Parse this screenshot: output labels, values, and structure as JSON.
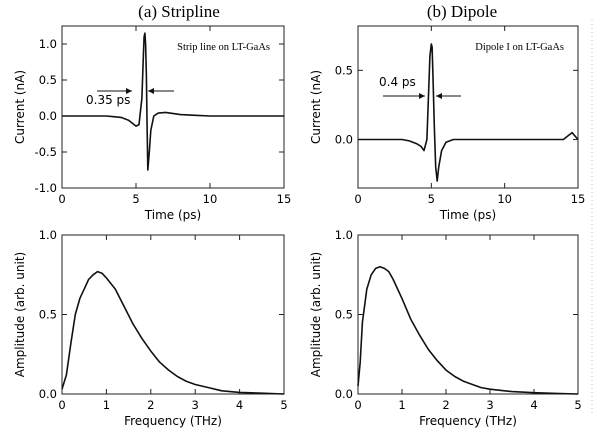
{
  "column_titles": [
    "(a) Stripline",
    "(b) Dipole"
  ],
  "chart_data": [
    {
      "type": "line",
      "panel": "stripline-time",
      "xlabel": "Time (ps)",
      "ylabel": "Current (nA)",
      "xlim": [
        0,
        15
      ],
      "ylim": [
        -1.0,
        1.25
      ],
      "xticks": [
        0,
        5,
        10,
        15
      ],
      "yticks": [
        -1.0,
        -0.5,
        0.0,
        0.5,
        1.0
      ],
      "ytick_labels": [
        "-1.0",
        "-0.5",
        "0.0",
        "0.5",
        "1.0"
      ],
      "legend_text": "Strip line on LT-GaAs",
      "annotation": {
        "text": "0.35 ps",
        "x": 5.6,
        "y": 0.55
      },
      "series": [
        {
          "x": [
            0,
            1,
            2,
            3,
            3.5,
            4,
            4.5,
            5.0,
            5.2,
            5.4,
            5.5,
            5.55,
            5.6,
            5.65,
            5.7,
            5.75,
            5.8,
            5.9,
            6.0,
            6.2,
            6.5,
            7,
            8,
            9,
            10,
            12,
            14,
            15
          ],
          "y": [
            0,
            0,
            0,
            0,
            -0.01,
            -0.02,
            -0.06,
            -0.14,
            -0.12,
            0.25,
            0.85,
            1.1,
            1.15,
            1.0,
            0.55,
            -0.15,
            -0.75,
            -0.5,
            -0.2,
            0.0,
            0.04,
            0.05,
            0.02,
            0.01,
            0.0,
            0.0,
            0.0,
            0.0
          ]
        }
      ]
    },
    {
      "type": "line",
      "panel": "dipole-time",
      "xlabel": "Time (ps)",
      "ylabel": "Current (nA)",
      "xlim": [
        0,
        15
      ],
      "ylim": [
        -0.35,
        0.82
      ],
      "xticks": [
        0,
        5,
        10,
        15
      ],
      "yticks": [
        0.0,
        0.5
      ],
      "ytick_labels": [
        "0.0",
        "0.5"
      ],
      "legend_text": "Dipole I on LT-GaAs",
      "annotation": {
        "text": "0.4 ps",
        "x": 5.0,
        "y": 0.38
      },
      "series": [
        {
          "x": [
            0,
            1,
            2,
            3,
            3.5,
            4,
            4.3,
            4.5,
            4.7,
            4.8,
            4.9,
            5.0,
            5.05,
            5.1,
            5.2,
            5.3,
            5.4,
            5.5,
            5.7,
            6.0,
            6.5,
            7,
            8,
            10,
            12,
            14,
            14.6,
            15
          ],
          "y": [
            0,
            0,
            0,
            0,
            -0.01,
            -0.03,
            -0.05,
            -0.08,
            0.0,
            0.3,
            0.6,
            0.69,
            0.67,
            0.5,
            0.1,
            -0.2,
            -0.3,
            -0.2,
            -0.08,
            -0.02,
            0.0,
            0.0,
            0.0,
            0.0,
            0.0,
            0.0,
            0.05,
            0.0
          ]
        }
      ]
    },
    {
      "type": "line",
      "panel": "stripline-spectrum",
      "xlabel": "Frequency (THz)",
      "ylabel": "Amplitude (arb. unit)",
      "xlim": [
        0,
        5
      ],
      "ylim": [
        0,
        1.0
      ],
      "xticks": [
        0,
        1,
        2,
        3,
        4,
        5
      ],
      "yticks": [
        0.0,
        0.5,
        1.0
      ],
      "ytick_labels": [
        "0.0",
        "0.5",
        "1.0"
      ],
      "series": [
        {
          "x": [
            0,
            0.1,
            0.2,
            0.3,
            0.4,
            0.5,
            0.6,
            0.7,
            0.8,
            0.9,
            1.0,
            1.2,
            1.4,
            1.6,
            1.8,
            2.0,
            2.2,
            2.4,
            2.6,
            2.8,
            3.0,
            3.3,
            3.6,
            4.0,
            4.5,
            5.0
          ],
          "y": [
            0.03,
            0.12,
            0.32,
            0.5,
            0.6,
            0.66,
            0.72,
            0.75,
            0.77,
            0.76,
            0.73,
            0.66,
            0.55,
            0.44,
            0.35,
            0.27,
            0.2,
            0.15,
            0.11,
            0.08,
            0.06,
            0.04,
            0.02,
            0.01,
            0.005,
            0.0
          ]
        }
      ]
    },
    {
      "type": "line",
      "panel": "dipole-spectrum",
      "xlabel": "Frequency (THz)",
      "ylabel": "Amplitude (arb. unit)",
      "xlim": [
        0,
        5
      ],
      "ylim": [
        0,
        1.0
      ],
      "xticks": [
        0,
        1,
        2,
        3,
        4,
        5
      ],
      "yticks": [
        0.0,
        0.5,
        1.0
      ],
      "ytick_labels": [
        "0.0",
        "0.5",
        "1.0"
      ],
      "series": [
        {
          "x": [
            0,
            0.05,
            0.1,
            0.2,
            0.3,
            0.4,
            0.5,
            0.6,
            0.7,
            0.8,
            1.0,
            1.2,
            1.4,
            1.6,
            1.8,
            2.0,
            2.2,
            2.4,
            2.6,
            2.8,
            3.0,
            3.5,
            4.0,
            4.5,
            5.0
          ],
          "y": [
            0.05,
            0.2,
            0.45,
            0.66,
            0.75,
            0.79,
            0.8,
            0.79,
            0.77,
            0.72,
            0.6,
            0.47,
            0.37,
            0.28,
            0.21,
            0.15,
            0.11,
            0.08,
            0.06,
            0.04,
            0.03,
            0.015,
            0.008,
            0.004,
            0.0
          ]
        }
      ]
    }
  ]
}
